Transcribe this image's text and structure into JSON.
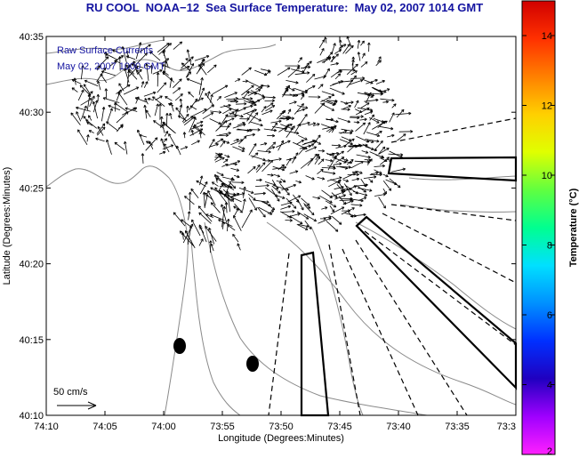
{
  "title": "RU COOL  NOAA−12  Sea Surface Temperature:  May 02, 2007 1014 GMT",
  "overlay_lines": [
    "Raw Surface Currents",
    "May 02, 2007 1000 GMT"
  ],
  "scale_label": "50 cm/s",
  "axes": {
    "x_label": "Longitude (Degrees:Minutes)",
    "y_label": "Latitude (Degrees:Minutes)",
    "x_ticks": [
      "74:10",
      "74:05",
      "74:00",
      "73:55",
      "73:50",
      "73:45",
      "73:40",
      "73:35",
      "73:3"
    ],
    "y_ticks": [
      "40:35",
      "40:30",
      "40:25",
      "40:20",
      "40:15",
      "40:10"
    ]
  },
  "colorbar": {
    "label": "Temperature (°C)",
    "ticks": [
      "14",
      "12",
      "10",
      "8",
      "6",
      "4",
      "2"
    ],
    "colors": [
      "#d00000",
      "#ff3000",
      "#ff8000",
      "#ffd000",
      "#e0ff00",
      "#60ff40",
      "#00ff90",
      "#00e0ff",
      "#0090ff",
      "#0030ff",
      "#2000c0",
      "#a000ff",
      "#ff20ff"
    ]
  }
}
